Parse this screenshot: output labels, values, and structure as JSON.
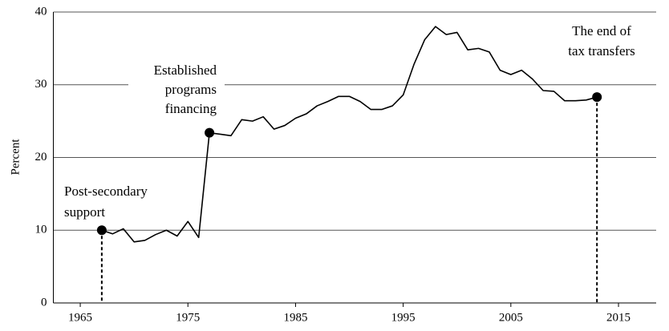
{
  "chart_data": {
    "type": "line",
    "ylabel": "Percent",
    "x": [
      1967,
      1968,
      1969,
      1970,
      1971,
      1972,
      1973,
      1974,
      1975,
      1976,
      1977,
      1978,
      1979,
      1980,
      1981,
      1982,
      1983,
      1984,
      1985,
      1986,
      1987,
      1988,
      1989,
      1990,
      1991,
      1992,
      1993,
      1994,
      1995,
      1996,
      1997,
      1998,
      1999,
      2000,
      2001,
      2002,
      2003,
      2004,
      2005,
      2006,
      2007,
      2008,
      2009,
      2010,
      2011,
      2012,
      2013
    ],
    "series": [
      {
        "color": "#000000",
        "values": [
          10.0,
          9.5,
          10.2,
          8.4,
          8.6,
          9.4,
          10.0,
          9.2,
          11.2,
          9.0,
          23.4,
          23.2,
          23.0,
          25.2,
          25.0,
          25.6,
          23.9,
          24.4,
          25.4,
          26.0,
          27.1,
          27.7,
          28.4,
          28.4,
          27.7,
          26.6,
          26.6,
          27.1,
          28.6,
          32.8,
          36.2,
          38.0,
          36.9,
          37.2,
          34.8,
          35.0,
          34.5,
          32.0,
          31.4,
          32.0,
          30.8,
          29.2,
          29.1,
          27.8,
          27.8,
          27.9,
          28.3
        ]
      }
    ],
    "xlim": [
      1962.5,
      2018.5
    ],
    "xticks": [
      1965,
      1975,
      1985,
      1995,
      2005,
      2015
    ],
    "ylim": [
      0,
      40
    ],
    "yticks": [
      0,
      10,
      20,
      30,
      40
    ],
    "grid": true,
    "annotations": [
      {
        "text": [
          "Post-secondary",
          "support"
        ]
      },
      {
        "text": [
          "Established",
          "programs",
          "financing"
        ]
      },
      {
        "text": [
          "The end of",
          "tax transfers"
        ]
      }
    ]
  }
}
